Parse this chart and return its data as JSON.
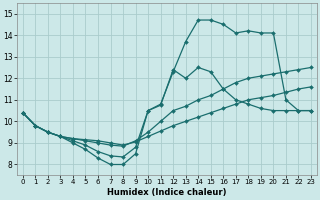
{
  "title": "",
  "xlabel": "Humidex (Indice chaleur)",
  "ylabel": "",
  "xlim": [
    -0.5,
    23.5
  ],
  "ylim": [
    7.5,
    15.5
  ],
  "yticks": [
    8,
    9,
    10,
    11,
    12,
    13,
    14,
    15
  ],
  "xticks": [
    0,
    1,
    2,
    3,
    4,
    5,
    6,
    7,
    8,
    9,
    10,
    11,
    12,
    13,
    14,
    15,
    16,
    17,
    18,
    19,
    20,
    21,
    22,
    23
  ],
  "background_color": "#cce8e8",
  "grid_color": "#aacccc",
  "line_color": "#1a6e6e",
  "series": [
    {
      "x": [
        0,
        1,
        2,
        3,
        4,
        5,
        6,
        7,
        8,
        9,
        10,
        11,
        12,
        13,
        14,
        15,
        16,
        17,
        18,
        19,
        20,
        21,
        22,
        23
      ],
      "y": [
        10.4,
        9.8,
        9.5,
        9.3,
        9.0,
        8.7,
        8.3,
        8.0,
        8.0,
        8.5,
        10.5,
        10.8,
        12.3,
        13.7,
        14.7,
        14.7,
        14.5,
        14.1,
        14.2,
        14.1,
        14.1,
        11.0,
        10.5,
        10.5
      ]
    },
    {
      "x": [
        0,
        1,
        2,
        3,
        4,
        5,
        6,
        7,
        8,
        9,
        10,
        11,
        12,
        13,
        14,
        15,
        16,
        17,
        18,
        19,
        20,
        21,
        22,
        23
      ],
      "y": [
        10.4,
        9.8,
        9.5,
        9.3,
        9.1,
        8.9,
        8.6,
        8.4,
        8.35,
        8.8,
        10.5,
        10.75,
        12.4,
        12.0,
        12.5,
        12.3,
        11.5,
        11.0,
        10.8,
        10.6,
        10.5,
        10.5,
        10.5,
        10.5
      ]
    },
    {
      "x": [
        0,
        1,
        2,
        3,
        4,
        5,
        6,
        7,
        8,
        9,
        10,
        11,
        12,
        13,
        14,
        15,
        16,
        17,
        18,
        19,
        20,
        21,
        22,
        23
      ],
      "y": [
        10.4,
        9.8,
        9.5,
        9.3,
        9.2,
        9.1,
        9.0,
        8.9,
        8.85,
        9.1,
        9.5,
        10.0,
        10.5,
        10.7,
        11.0,
        11.2,
        11.5,
        11.8,
        12.0,
        12.1,
        12.2,
        12.3,
        12.4,
        12.5
      ]
    },
    {
      "x": [
        0,
        1,
        2,
        3,
        4,
        5,
        6,
        7,
        8,
        9,
        10,
        11,
        12,
        13,
        14,
        15,
        16,
        17,
        18,
        19,
        20,
        21,
        22,
        23
      ],
      "y": [
        10.4,
        9.8,
        9.5,
        9.3,
        9.2,
        9.15,
        9.1,
        9.0,
        8.9,
        9.05,
        9.3,
        9.55,
        9.8,
        10.0,
        10.2,
        10.4,
        10.6,
        10.8,
        11.0,
        11.1,
        11.2,
        11.35,
        11.5,
        11.6
      ]
    }
  ]
}
